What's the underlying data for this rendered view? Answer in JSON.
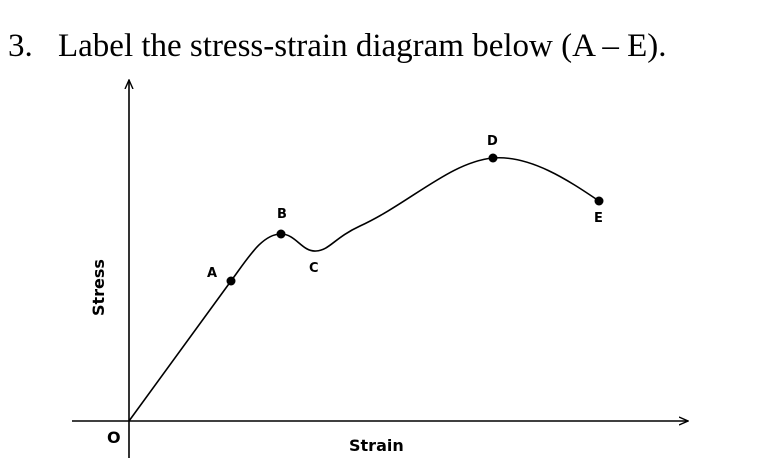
{
  "question": {
    "number": "3.",
    "text": "Label the stress-strain diagram below (A – E)."
  },
  "diagram": {
    "origin_label": "O",
    "x_axis_label": "Strain",
    "y_axis_label": "Stress",
    "points": [
      {
        "id": "A",
        "label": "A"
      },
      {
        "id": "B",
        "label": "B"
      },
      {
        "id": "C",
        "label": "C"
      },
      {
        "id": "D",
        "label": "D"
      },
      {
        "id": "E",
        "label": "E"
      }
    ],
    "colors": {
      "ink": "#000000",
      "background": "#ffffff"
    }
  }
}
